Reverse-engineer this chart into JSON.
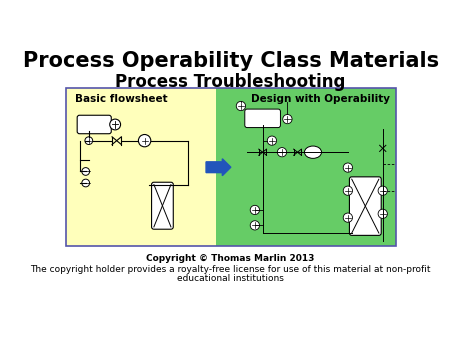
{
  "title": "Process Operability Class Materials",
  "subtitle": "Process Troubleshooting",
  "copyright_line1": "Copyright © Thomas Marlin 2013",
  "copyright_line2": "The copyright holder provides a royalty-free license for use of this material at non-profit",
  "copyright_line3": "educational institutions",
  "label_left": "Basic flowsheet",
  "label_right": "Design with Operability",
  "bg_color": "#ffffff",
  "left_bg": "#ffffbb",
  "right_bg": "#66cc66",
  "border_color": "#5555aa",
  "arrow_color": "#2255bb",
  "title_fontsize": 15,
  "subtitle_fontsize": 12,
  "copyright_fontsize": 6.5,
  "label_fontsize": 7.5
}
